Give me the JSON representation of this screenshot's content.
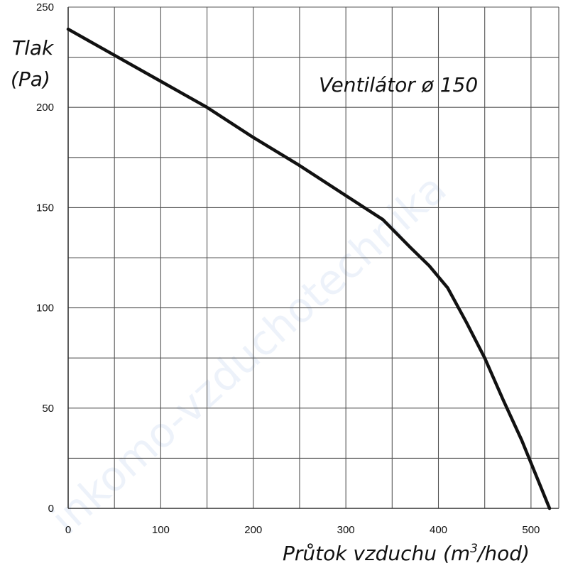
{
  "watermark": "inkomo-vzduchotechnika",
  "chart_data": {
    "type": "line",
    "title": "Ventilátor ø 150",
    "ylabel_line1": "Tlak",
    "ylabel_line2": "(Pa)",
    "xlabel_main": "Průtok vzduchu (m",
    "xlabel_sup": "3",
    "xlabel_tail": "/hod)",
    "xlim": [
      0,
      530
    ],
    "ylim": [
      0,
      250
    ],
    "x_ticks": [
      0,
      100,
      200,
      300,
      400,
      500
    ],
    "y_ticks": [
      0,
      50,
      100,
      150,
      200,
      250
    ],
    "grid": true,
    "x_grid_step": 50,
    "y_grid_step": 25,
    "series": [
      {
        "color": "#111111",
        "x": [
          0,
          50,
          100,
          150,
          200,
          250,
          300,
          340,
          370,
          390,
          410,
          430,
          450,
          470,
          490,
          505,
          520
        ],
        "y": [
          239,
          226,
          213,
          200,
          185,
          171,
          156,
          144,
          130,
          121,
          110,
          93,
          75,
          54,
          34,
          17,
          0
        ]
      }
    ]
  }
}
